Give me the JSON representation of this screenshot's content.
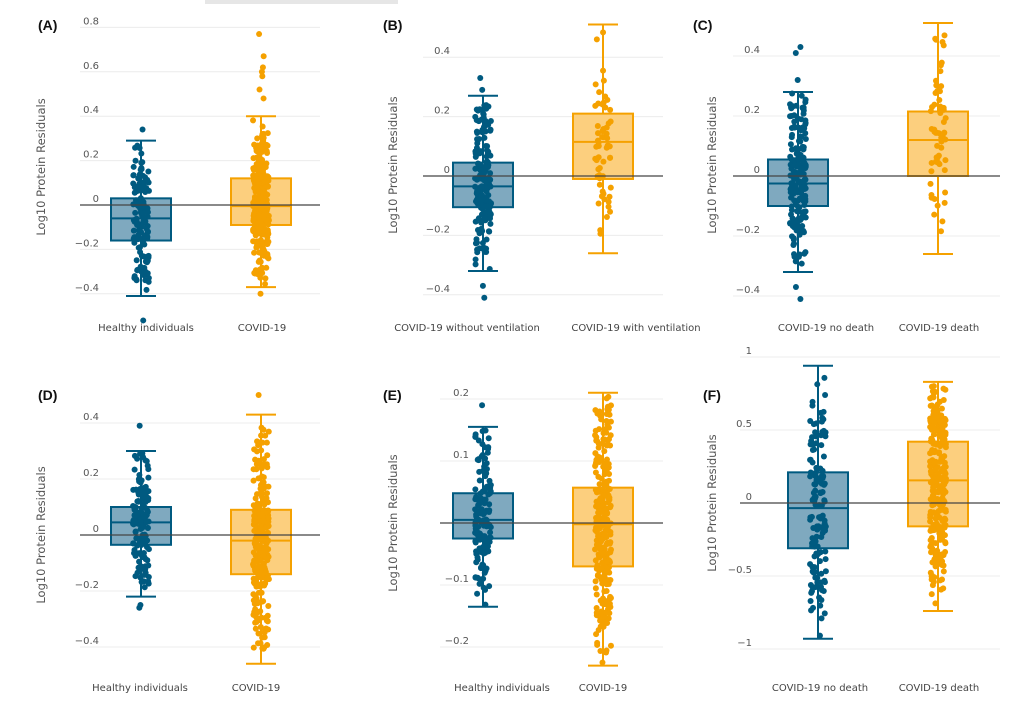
{
  "colors": {
    "group1_stroke": "#005a80",
    "group1_fill": "#7fa9bf",
    "group2_stroke": "#f5a100",
    "group2_fill": "#fccf7e",
    "grid": "#ececec",
    "zero_line": "#444444"
  },
  "chart_data": [
    {
      "type": "box",
      "panel_label": "(A)",
      "ylabel": "Log10 Protein Residuals",
      "yticks": [
        -0.4,
        -0.2,
        0,
        0.2,
        0.4,
        0.6,
        0.8
      ],
      "ytick_labels": [
        "−0.4",
        "−0.2",
        "0",
        "0.2",
        "0.4",
        "0.6",
        "0.8"
      ],
      "grid": true,
      "categories": [
        "Healthy individuals",
        "COVID-19"
      ],
      "boxes": [
        {
          "lower_whisker": -0.41,
          "q1": -0.16,
          "median": -0.06,
          "q3": 0.03,
          "upper_whisker": 0.29,
          "outliers": [
            0.34,
            -0.52
          ]
        },
        {
          "lower_whisker": -0.37,
          "q1": -0.09,
          "median": -0.005,
          "q3": 0.12,
          "upper_whisker": 0.4,
          "outliers": [
            0.48,
            0.52,
            0.58,
            0.6,
            0.62,
            0.67,
            0.77,
            -0.4
          ]
        }
      ]
    },
    {
      "type": "box",
      "panel_label": "(B)",
      "ylabel": "Log10 Protein Residuals",
      "yticks": [
        -0.4,
        -0.2,
        0,
        0.2,
        0.4
      ],
      "ytick_labels": [
        "−0.4",
        "−0.2",
        "0",
        "0.2",
        "0.4"
      ],
      "grid": true,
      "categories": [
        "COVID-19 without ventilation",
        "COVID-19 with ventilation"
      ],
      "boxes": [
        {
          "lower_whisker": -0.32,
          "q1": -0.105,
          "median": -0.035,
          "q3": 0.045,
          "upper_whisker": 0.27,
          "outliers": [
            0.29,
            0.33,
            -0.37,
            -0.41
          ]
        },
        {
          "lower_whisker": -0.26,
          "q1": -0.01,
          "median": 0.115,
          "q3": 0.21,
          "upper_whisker": 0.51,
          "outliers": []
        }
      ]
    },
    {
      "type": "box",
      "panel_label": "(C)",
      "ylabel": "Log10 Protein Residuals",
      "yticks": [
        -0.4,
        -0.2,
        0,
        0.2,
        0.4
      ],
      "ytick_labels": [
        "−0.4",
        "−0.2",
        "0",
        "0.2",
        "0.4"
      ],
      "grid": true,
      "categories": [
        "COVID-19 no death",
        "COVID-19 death"
      ],
      "boxes": [
        {
          "lower_whisker": -0.32,
          "q1": -0.1,
          "median": -0.025,
          "q3": 0.055,
          "upper_whisker": 0.28,
          "outliers": [
            0.32,
            0.41,
            0.43,
            -0.37,
            -0.41
          ]
        },
        {
          "lower_whisker": -0.26,
          "q1": 0.0,
          "median": 0.12,
          "q3": 0.215,
          "upper_whisker": 0.51,
          "outliers": []
        }
      ]
    },
    {
      "type": "box",
      "panel_label": "(D)",
      "ylabel": "Log10 Protein Residuals",
      "yticks": [
        -0.4,
        -0.2,
        0,
        0.2,
        0.4
      ],
      "ytick_labels": [
        "−0.4",
        "−0.2",
        "0",
        "0.2",
        "0.4"
      ],
      "grid": true,
      "categories": [
        "Healthy individuals",
        "COVID-19"
      ],
      "boxes": [
        {
          "lower_whisker": -0.22,
          "q1": -0.035,
          "median": 0.045,
          "q3": 0.1,
          "upper_whisker": 0.3,
          "outliers": [
            0.39,
            -0.25,
            -0.26
          ]
        },
        {
          "lower_whisker": -0.46,
          "q1": -0.14,
          "median": -0.02,
          "q3": 0.09,
          "upper_whisker": 0.43,
          "outliers": [
            0.5
          ]
        }
      ]
    },
    {
      "type": "box",
      "panel_label": "(E)",
      "ylabel": "Log10 Protein Residuals",
      "yticks": [
        -0.2,
        -0.1,
        0,
        0.1,
        0.2
      ],
      "ytick_labels": [
        "−0.2",
        "−0.1",
        "0",
        "0.1",
        "0.2"
      ],
      "grid": true,
      "categories": [
        "Healthy individuals",
        "COVID-19"
      ],
      "boxes": [
        {
          "lower_whisker": -0.135,
          "q1": -0.025,
          "median": 0.005,
          "q3": 0.048,
          "upper_whisker": 0.155,
          "outliers": [
            0.19
          ]
        },
        {
          "lower_whisker": -0.23,
          "q1": -0.07,
          "median": -0.002,
          "q3": 0.057,
          "upper_whisker": 0.21,
          "outliers": []
        }
      ]
    },
    {
      "type": "box",
      "panel_label": "(F)",
      "ylabel": "Log10 Protein Residuals",
      "yticks": [
        -1,
        -0.5,
        0,
        0.5,
        1
      ],
      "ytick_labels": [
        "−1",
        "−0.5",
        "0",
        "0.5",
        "1"
      ],
      "grid": true,
      "categories": [
        "COVID-19 no death",
        "COVID-19 death"
      ],
      "boxes": [
        {
          "lower_whisker": -0.93,
          "q1": -0.31,
          "median": -0.035,
          "q3": 0.21,
          "upper_whisker": 0.94,
          "outliers": []
        },
        {
          "lower_whisker": -0.74,
          "q1": -0.16,
          "median": 0.155,
          "q3": 0.42,
          "upper_whisker": 0.83,
          "outliers": []
        }
      ]
    }
  ]
}
